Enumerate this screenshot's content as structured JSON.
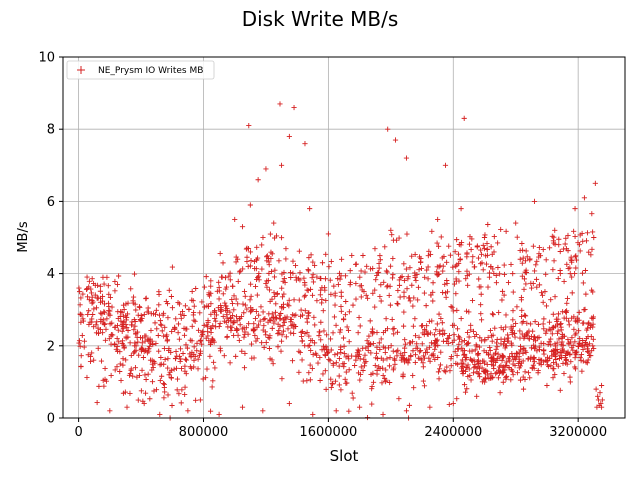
{
  "chart_data": {
    "type": "scatter",
    "title": "Disk Write MB/s",
    "xlabel": "Slot",
    "ylabel": "MB/s",
    "xlim": [
      -100000,
      3500000
    ],
    "ylim": [
      0,
      10
    ],
    "xticks": [
      0,
      800000,
      1600000,
      2400000,
      3200000
    ],
    "xtick_labels": [
      "0",
      "800000",
      "1600000",
      "2400000",
      "3200000"
    ],
    "yticks": [
      0,
      2,
      4,
      6,
      8,
      10
    ],
    "ytick_labels": [
      "0",
      "2",
      "4",
      "6",
      "8",
      "10"
    ],
    "grid": true,
    "legend_position": "top-left",
    "marker": "+",
    "color": "#d62020",
    "series": [
      {
        "name": "NE_Prysm IO Writes MB",
        "bands": [
          {
            "x": [
              0,
              50000,
              150000,
              300000,
              450000,
              550000,
              650000,
              750000,
              850000,
              900000,
              1000000,
              1200000,
              1350000,
              1500000,
              1600000,
              1800000,
              2000000,
              2200000,
              2400000,
              2450000,
              2600000,
              2800000,
              3000000,
              3300000
            ],
            "y": [
              2.6,
              3.6,
              3.0,
              2.3,
              1.9,
              1.7,
              1.65,
              1.8,
              2.4,
              3.0,
              2.6,
              2.7,
              2.8,
              2.2,
              1.8,
              1.9,
              2.0,
              2.1,
              2.3,
              2.0,
              1.9,
              2.1,
              2.3,
              2.6
            ],
            "spread": 0.35,
            "count": 650
          },
          {
            "x": [
              0,
              50000,
              150000,
              300000,
              450000,
              600000,
              800000,
              900000,
              1000000,
              1200000,
              1400000,
              1600000,
              1800000,
              2000000,
              2200000,
              2400000,
              2600000,
              2800000,
              3000000,
              3300000
            ],
            "y": [
              3.0,
              3.4,
              3.2,
              3.0,
              2.8,
              2.6,
              3.0,
              3.6,
              3.9,
              4.0,
              3.8,
              3.6,
              3.7,
              3.8,
              4.0,
              4.1,
              4.2,
              4.1,
              4.3,
              4.6
            ],
            "spread": 0.5,
            "count": 650
          },
          {
            "x": [
              2450000,
              2600000,
              2800000,
              3000000,
              3300000
            ],
            "y": [
              1.4,
              1.3,
              1.45,
              1.6,
              1.9
            ],
            "spread": 0.2,
            "count": 200
          },
          {
            "x": [
              0,
              150000,
              300000,
              450000,
              600000,
              800000,
              900000,
              1000000,
              1200000,
              1400000,
              1600000,
              1800000,
              2000000,
              2200000,
              2400000,
              2600000,
              2800000,
              3000000,
              3300000
            ],
            "y": [
              2.2,
              1.8,
              1.4,
              1.1,
              1.0,
              1.4,
              2.0,
              2.2,
              2.4,
              2.0,
              1.5,
              1.4,
              1.5,
              1.6,
              1.8,
              1.9,
              2.0,
              2.1,
              2.3
            ],
            "spread": 0.6,
            "count": 450
          }
        ],
        "outliers": [
          [
            1090000,
            8.1
          ],
          [
            1290000,
            8.7
          ],
          [
            1380000,
            8.6
          ],
          [
            1980000,
            8.0
          ],
          [
            2470000,
            8.3
          ],
          [
            1350000,
            7.8
          ],
          [
            1450000,
            7.6
          ],
          [
            2030000,
            7.7
          ],
          [
            2100000,
            7.2
          ],
          [
            2350000,
            7.0
          ],
          [
            1300000,
            7.0
          ],
          [
            1200000,
            6.9
          ],
          [
            1150000,
            6.6
          ],
          [
            3310000,
            6.5
          ],
          [
            2920000,
            6.0
          ],
          [
            3240000,
            6.1
          ],
          [
            1100000,
            5.9
          ],
          [
            1480000,
            5.8
          ],
          [
            2450000,
            5.8
          ],
          [
            3180000,
            5.8
          ],
          [
            1000000,
            5.5
          ],
          [
            1050000,
            5.3
          ],
          [
            1250000,
            5.4
          ],
          [
            1600000,
            5.1
          ],
          [
            2000000,
            5.2
          ],
          [
            2300000,
            5.5
          ],
          [
            2600000,
            5.0
          ],
          [
            2800000,
            5.4
          ],
          [
            3050000,
            5.2
          ],
          [
            3300000,
            5.0
          ],
          [
            200000,
            0.2
          ],
          [
            310000,
            0.3
          ],
          [
            420000,
            0.4
          ],
          [
            520000,
            0.1
          ],
          [
            700000,
            0.2
          ],
          [
            780000,
            0.5
          ],
          [
            900000,
            0.1
          ],
          [
            1050000,
            0.3
          ],
          [
            1180000,
            0.2
          ],
          [
            1350000,
            0.4
          ],
          [
            1500000,
            0.1
          ],
          [
            1650000,
            0.2
          ],
          [
            1800000,
            0.3
          ],
          [
            1950000,
            0.1
          ],
          [
            2100000,
            0.2
          ],
          [
            2250000,
            0.3
          ],
          [
            2400000,
            0.4
          ],
          [
            2550000,
            0.6
          ],
          [
            2700000,
            0.7
          ],
          [
            2850000,
            0.8
          ],
          [
            3000000,
            0.9
          ],
          [
            3150000,
            1.0
          ],
          [
            3320000,
            0.3
          ],
          [
            3330000,
            0.5
          ],
          [
            3340000,
            0.7
          ],
          [
            3350000,
            0.9
          ],
          [
            3345000,
            0.4
          ],
          [
            3325000,
            0.6
          ],
          [
            3355000,
            0.5
          ],
          [
            3335000,
            0.35
          ],
          [
            3315000,
            0.8
          ],
          [
            3350000,
            0.3
          ]
        ]
      }
    ]
  }
}
